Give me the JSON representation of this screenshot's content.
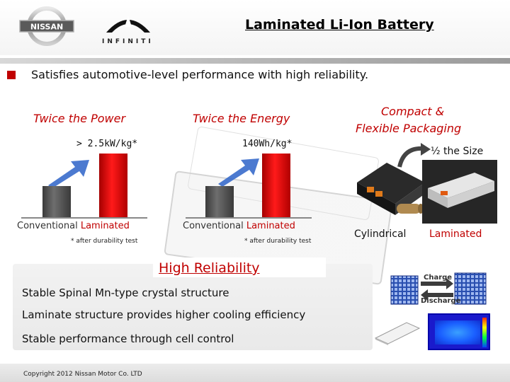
{
  "header": {
    "title": "Laminated Li-Ion Battery",
    "logos": [
      "nissan",
      "infiniti"
    ],
    "nissan_wordmark": "NISSAN",
    "infiniti_wordmark": "INFINITI"
  },
  "bullet": {
    "text": "Satisfies automotive-level performance with high reliability."
  },
  "power": {
    "title": "Twice the Power",
    "value": "> 2.5kW/kg*",
    "conventional_label": "Conventional",
    "laminated_label": "Laminated",
    "footnote": "* after durability test"
  },
  "energy": {
    "title": "Twice the Energy",
    "value": "140Wh/kg*",
    "conventional_label": "Conventional",
    "laminated_label": "Laminated",
    "footnote": "* after durability test"
  },
  "packaging": {
    "title_line1": "Compact &",
    "title_line2": "Flexible Packaging",
    "size_note": "½ the Size",
    "cylindrical_label": "Cylindrical",
    "laminated_label": "Laminated"
  },
  "reliability": {
    "title": "High Reliability",
    "lines": [
      "Stable Spinal Mn-type crystal structure",
      "Laminate structure provides higher cooling efficiency",
      "Stable performance through cell control"
    ],
    "charge_label": "Charge",
    "discharge_label": "Discharge"
  },
  "footer": {
    "copyright": "Copyright 2012 Nissan Motor Co. LTD"
  },
  "colors": {
    "accent_red": "#c00000",
    "arrow_blue": "#2d63c8",
    "bar_gray": "#555555",
    "bar_red": "#e00000"
  },
  "icons": {
    "up_arrow": "up-right-arrow-icon",
    "curved_arrow": "curved-arrow-icon",
    "charge_arrow": "right-arrow-icon",
    "discharge_arrow": "left-arrow-icon"
  }
}
